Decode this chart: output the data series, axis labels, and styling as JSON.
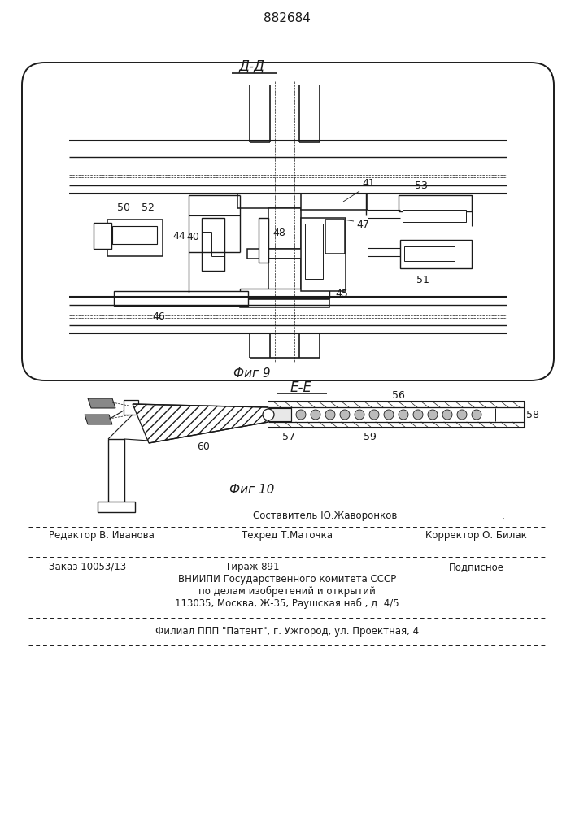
{
  "patent_number": "882684",
  "fig9_label": "Д-Д",
  "fig9_caption": "Фиг 9",
  "fig10_label": "Е-Е",
  "fig10_caption": "Фиг 10",
  "footer_line1_center": "Составитель Ю.Жаворонков",
  "footer_line2_left": "Редактор В. Иванова",
  "footer_line2_center": "Техред Т.Маточка",
  "footer_line2_right": "Корректор О. Билак",
  "footer_line3_left": "Заказ 10053/13",
  "footer_line3_center": "Тираж 891",
  "footer_line3_right": "Подписное",
  "footer_line4": "ВНИИПИ Государственного комитета СССР",
  "footer_line5": "по делам изобретений и открытий",
  "footer_line6": "113035, Москва, Ж-35, Раушская наб., д. 4/5",
  "footer_line7": "Филиал ППП \"Патент\", г. Ужгород, ул. Проектная, 4",
  "bg_color": "#ffffff",
  "line_color": "#1a1a1a"
}
